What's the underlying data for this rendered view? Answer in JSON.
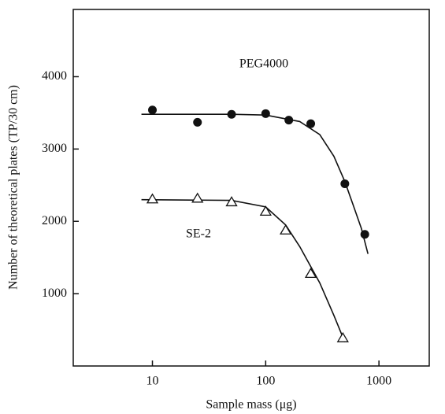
{
  "chart_data": {
    "type": "scatter",
    "x_label": "Sample mass (μg)",
    "y_label": "Number of theoretical plates (TP/30 cm)",
    "xscale": "log",
    "xlim": [
      2,
      2780
    ],
    "ylim": [
      0,
      4930
    ],
    "xticks": [
      10,
      100,
      1000
    ],
    "yticks": [
      1000,
      2000,
      3000,
      4000
    ],
    "series": [
      {
        "name": "PEG4000",
        "marker": "circle",
        "color": "#111111",
        "x": [
          10,
          25,
          50,
          100,
          160,
          250,
          500,
          750
        ],
        "values": [
          3540,
          3370,
          3480,
          3490,
          3400,
          3350,
          2520,
          1820
        ]
      },
      {
        "name": "SE-2",
        "marker": "triangle",
        "color": "#111111",
        "x": [
          10,
          25,
          50,
          100,
          150,
          250,
          480
        ],
        "values": [
          2310,
          2320,
          2270,
          2140,
          1880,
          1280,
          390
        ]
      }
    ],
    "fits": [
      {
        "x": [
          8,
          50,
          100,
          200,
          300,
          400,
          500,
          600,
          700,
          800
        ],
        "values": [
          3480,
          3480,
          3470,
          3380,
          3200,
          2900,
          2550,
          2200,
          1900,
          1550
        ]
      },
      {
        "x": [
          8,
          50,
          100,
          150,
          200,
          300,
          400,
          500
        ],
        "values": [
          2300,
          2290,
          2200,
          1950,
          1650,
          1150,
          700,
          330
        ]
      }
    ]
  }
}
